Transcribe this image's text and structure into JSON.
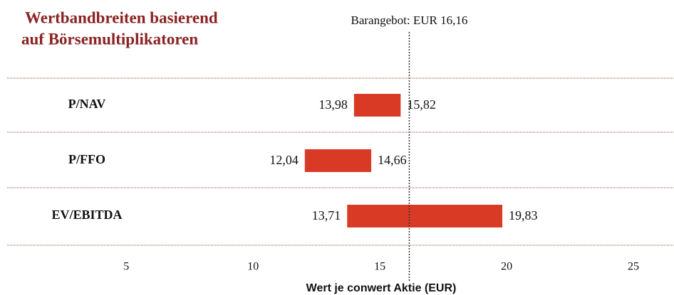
{
  "chart_data": {
    "type": "range_bar",
    "title": [
      "Wertbandbreiten basierend",
      "auf Börsemultiplikatoren"
    ],
    "xlabel": "Wert je conwert Aktie (EUR)",
    "color": "#d93a25",
    "bars": [
      {
        "category": "P/NAV",
        "low": 13.98,
        "high": 15.82,
        "low_label": "13,98",
        "high_label": "15,82"
      },
      {
        "category": "P/FFO",
        "low": 12.04,
        "high": 14.66,
        "low_label": "12,04",
        "high_label": "14,66"
      },
      {
        "category": "EV/EBITDA",
        "low": 13.71,
        "high": 19.83,
        "low_label": "13,71",
        "high_label": "19,83"
      }
    ],
    "reference": {
      "value": 16.16,
      "label": "Barangebot: EUR 16,16"
    },
    "xlim": [
      0.3,
      26.6
    ],
    "xticks": [
      5,
      10,
      15,
      20,
      25
    ]
  }
}
